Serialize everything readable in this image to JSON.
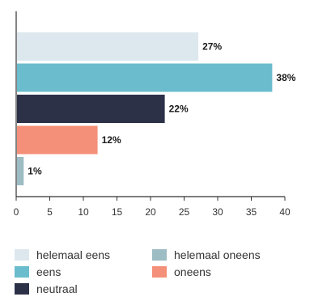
{
  "chart_data": {
    "type": "bar",
    "orientation": "horizontal",
    "categories": [
      "helemaal eens",
      "eens",
      "neutraal",
      "oneens",
      "helemaal oneens"
    ],
    "values": [
      27,
      38,
      22,
      12,
      1
    ],
    "value_labels": [
      "27%",
      "38%",
      "22%",
      "12%",
      "1%"
    ],
    "colors": [
      "#dde8ee",
      "#6bbccc",
      "#2c3148",
      "#f4907a",
      "#9dbcc4"
    ],
    "xlim": [
      0,
      40
    ],
    "xticks": [
      "0",
      "5",
      "10",
      "15",
      "20",
      "25",
      "30",
      "35",
      "40"
    ],
    "grid": false,
    "legend_position": "bottom"
  },
  "legend": {
    "items": [
      {
        "label": "helemaal eens",
        "color": "#dde8ee"
      },
      {
        "label": "eens",
        "color": "#6bbccc"
      },
      {
        "label": "neutraal",
        "color": "#2c3148"
      },
      {
        "label": "helemaal oneens",
        "color": "#9dbcc4"
      },
      {
        "label": "oneens",
        "color": "#f4907a"
      }
    ]
  }
}
